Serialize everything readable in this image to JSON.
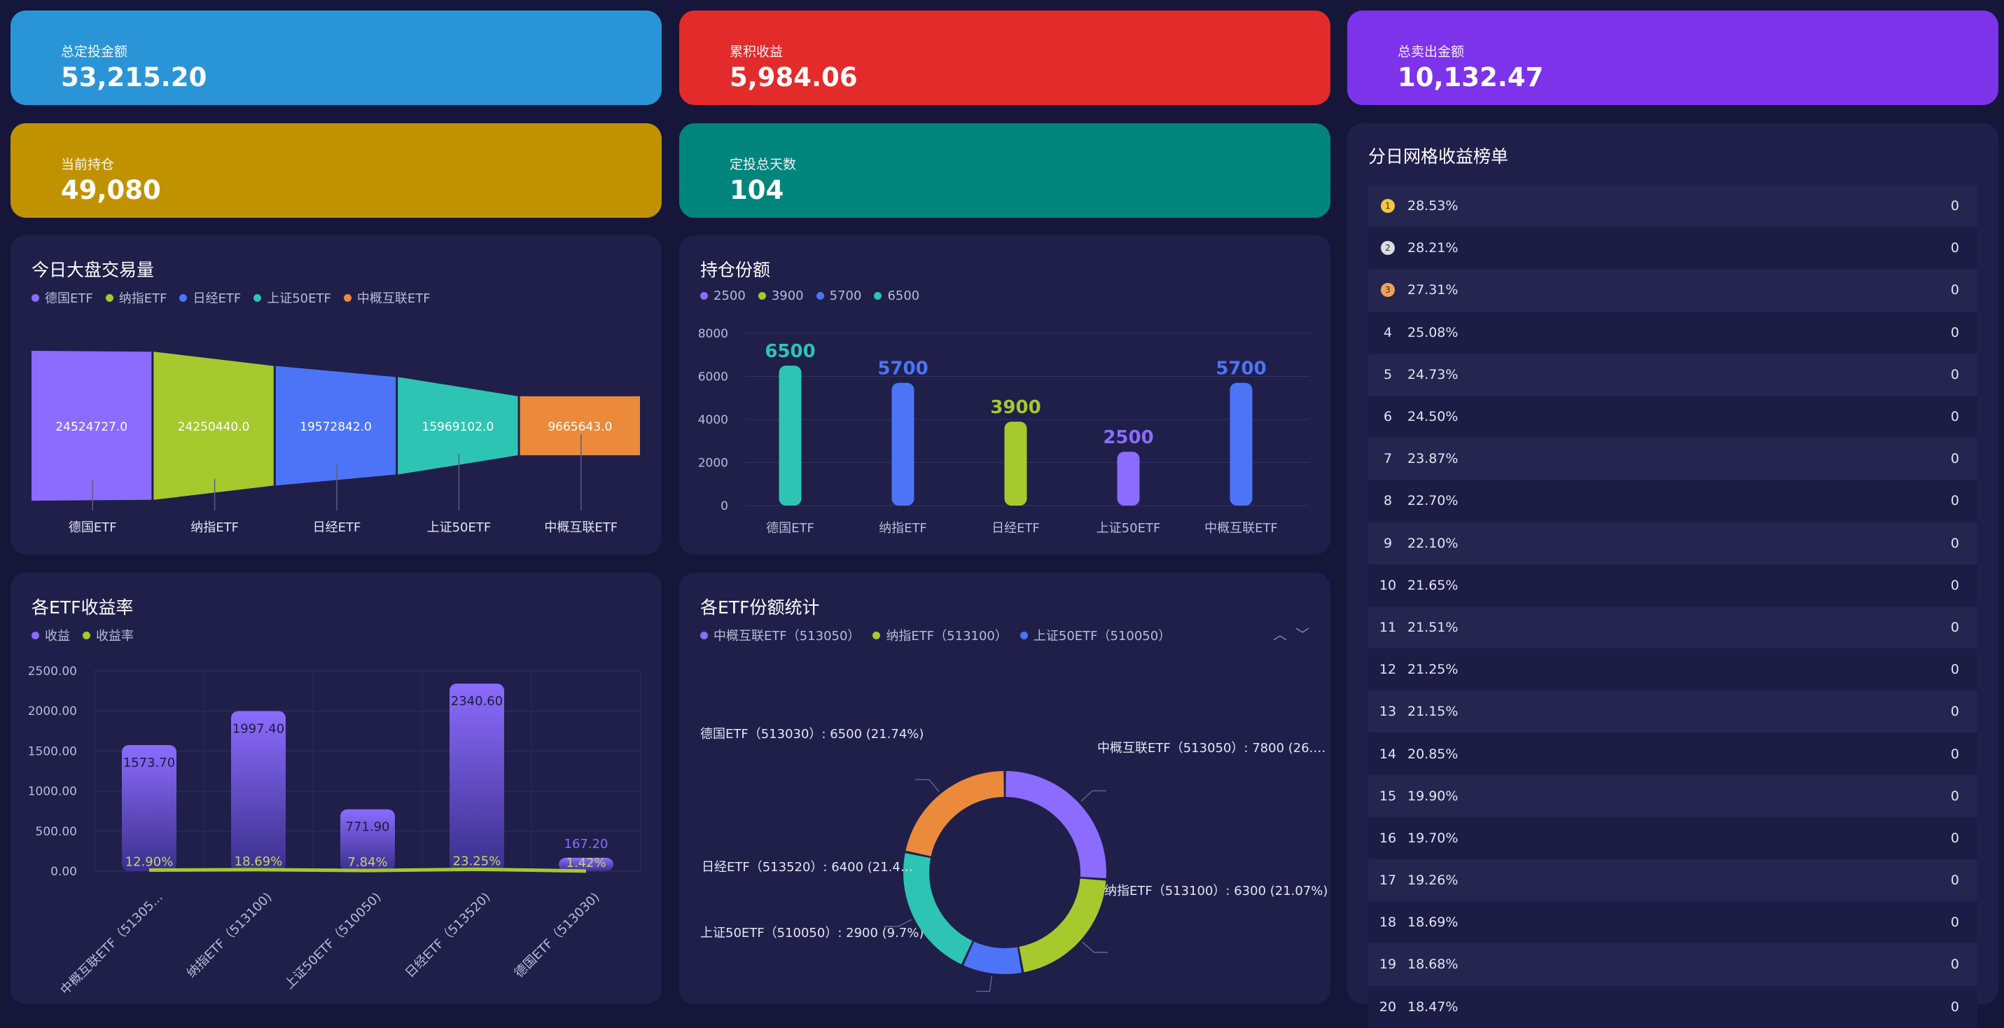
{
  "stats": [
    {
      "label": "总定投金额",
      "value": "53,215.20",
      "color": "#2a95d6"
    },
    {
      "label": "累积收益",
      "value": "5,984.06",
      "color": "#e32b2b"
    },
    {
      "label": "总卖出金额",
      "value": "10,132.47",
      "color": "#7c33ea"
    },
    {
      "label": "当前持仓",
      "value": "49,080",
      "color": "#c19200"
    },
    {
      "label": "定投总天数",
      "value": "104",
      "color": "#00857d"
    }
  ],
  "panels": {
    "volume": {
      "title": "今日大盘交易量"
    },
    "holdings": {
      "title": "持仓份额"
    },
    "returns": {
      "title": "各ETF收益率"
    },
    "shares": {
      "title": "各ETF份额统计"
    },
    "ranking": {
      "title": "分日网格收益榜单"
    }
  },
  "colors": {
    "purple": "#8b6cff",
    "green": "#a6c92e",
    "blue": "#4d74f7",
    "teal": "#2ec4b3",
    "orange": "#ec8a3b"
  },
  "chart_data": [
    {
      "id": "volume",
      "type": "funnel",
      "categories": [
        "德国ETF",
        "纳指ETF",
        "日经ETF",
        "上证50ETF",
        "中概互联ETF"
      ],
      "values": [
        24524727.0,
        24250440.0,
        19572842.0,
        15969102.0,
        9665643.0
      ],
      "labels": [
        "24524727.0",
        "24250440.0",
        "19572842.0",
        "15969102.0",
        "9665643.0"
      ],
      "legend": [
        "德国ETF",
        "纳指ETF",
        "日经ETF",
        "上证50ETF",
        "中概互联ETF"
      ],
      "series_colors": [
        "#8b6cff",
        "#a6c92e",
        "#4d74f7",
        "#2ec4b3",
        "#ec8a3b"
      ]
    },
    {
      "id": "holdings",
      "type": "bar",
      "categories": [
        "德国ETF",
        "纳指ETF",
        "日经ETF",
        "上证50ETF",
        "中概互联ETF"
      ],
      "values": [
        6500,
        5700,
        3900,
        2500,
        5700
      ],
      "value_labels": [
        "6500",
        "5700",
        "3900",
        "2500",
        "5700"
      ],
      "bar_colors": [
        "#2ec4b3",
        "#4d74f7",
        "#a6c92e",
        "#8b6cff",
        "#4d74f7"
      ],
      "legend": [
        {
          "name": "2500",
          "color": "#8b6cff"
        },
        {
          "name": "3900",
          "color": "#a6c92e"
        },
        {
          "name": "5700",
          "color": "#4d74f7"
        },
        {
          "name": "6500",
          "color": "#2ec4b3"
        }
      ],
      "ylim": [
        0,
        8000
      ],
      "yticks": [
        "0",
        "2000",
        "4000",
        "6000",
        "8000"
      ],
      "grid": true
    },
    {
      "id": "returns",
      "type": "bar",
      "categories": [
        "中概互联ETF（51305...",
        "纳指ETF（513100)",
        "上证50ETF（510050)",
        "日经ETF（513520)",
        "德国ETF（513030)"
      ],
      "series": [
        {
          "name": "收益",
          "values": [
            1573.7,
            1997.4,
            771.9,
            2340.6,
            167.2
          ],
          "labels": [
            "1573.70",
            "1997.40",
            "771.90",
            "2340.60",
            "167.20"
          ],
          "color": "#8b6cff"
        },
        {
          "name": "收益率",
          "values": [
            12.9,
            18.69,
            7.84,
            23.25,
            1.42
          ],
          "labels": [
            "12.90%",
            "18.69%",
            "7.84%",
            "23.25%",
            "1.42%"
          ],
          "color": "#a6c92e"
        }
      ],
      "ylim": [
        0,
        2500
      ],
      "yticks": [
        "0.00",
        "500.00",
        "1000.00",
        "1500.00",
        "2000.00",
        "2500.00"
      ],
      "grid": true
    },
    {
      "id": "shares",
      "type": "pie",
      "slices": [
        {
          "name": "中概互联ETF（513050）",
          "value": 7800,
          "label": "中概互联ETF（513050）: 7800 (26.…",
          "color": "#8b6cff"
        },
        {
          "name": "纳指ETF（513100）",
          "value": 6300,
          "label": "纳指ETF（513100）: 6300 (21.07%)",
          "color": "#a6c92e"
        },
        {
          "name": "上证50ETF（510050）",
          "value": 2900,
          "label": "上证50ETF（510050）: 2900 (9.7%)",
          "color": "#4d74f7"
        },
        {
          "name": "日经ETF（513520）",
          "value": 6400,
          "label": "日经ETF（513520）: 6400 (21.4…",
          "color": "#2ec4b3"
        },
        {
          "name": "德国ETF（513030）",
          "value": 6500,
          "label": "德国ETF（513030）: 6500 (21.74%)",
          "color": "#ec8a3b"
        }
      ],
      "legend": [
        {
          "name": "中概互联ETF（513050）",
          "color": "#8b6cff"
        },
        {
          "name": "纳指ETF（513100）",
          "color": "#a6c92e"
        },
        {
          "name": "上证50ETF（510050）",
          "color": "#4d74f7"
        }
      ]
    }
  ],
  "ranking": {
    "rows": [
      {
        "rank": "1",
        "pct": "28.53%",
        "value": "0",
        "medal": "#f5c542"
      },
      {
        "rank": "2",
        "pct": "28.21%",
        "value": "0",
        "medal": "#d9dde8"
      },
      {
        "rank": "3",
        "pct": "27.31%",
        "value": "0",
        "medal": "#f0a25a"
      },
      {
        "rank": "4",
        "pct": "25.08%",
        "value": "0"
      },
      {
        "rank": "5",
        "pct": "24.73%",
        "value": "0"
      },
      {
        "rank": "6",
        "pct": "24.50%",
        "value": "0"
      },
      {
        "rank": "7",
        "pct": "23.87%",
        "value": "0"
      },
      {
        "rank": "8",
        "pct": "22.70%",
        "value": "0"
      },
      {
        "rank": "9",
        "pct": "22.10%",
        "value": "0"
      },
      {
        "rank": "10",
        "pct": "21.65%",
        "value": "0"
      },
      {
        "rank": "11",
        "pct": "21.51%",
        "value": "0"
      },
      {
        "rank": "12",
        "pct": "21.25%",
        "value": "0"
      },
      {
        "rank": "13",
        "pct": "21.15%",
        "value": "0"
      },
      {
        "rank": "14",
        "pct": "20.85%",
        "value": "0"
      },
      {
        "rank": "15",
        "pct": "19.90%",
        "value": "0"
      },
      {
        "rank": "16",
        "pct": "19.70%",
        "value": "0"
      },
      {
        "rank": "17",
        "pct": "19.26%",
        "value": "0"
      },
      {
        "rank": "18",
        "pct": "18.69%",
        "value": "0"
      },
      {
        "rank": "19",
        "pct": "18.68%",
        "value": "0"
      },
      {
        "rank": "20",
        "pct": "18.47%",
        "value": "0"
      }
    ]
  },
  "controls": {
    "up": "︿",
    "down": "﹀"
  }
}
